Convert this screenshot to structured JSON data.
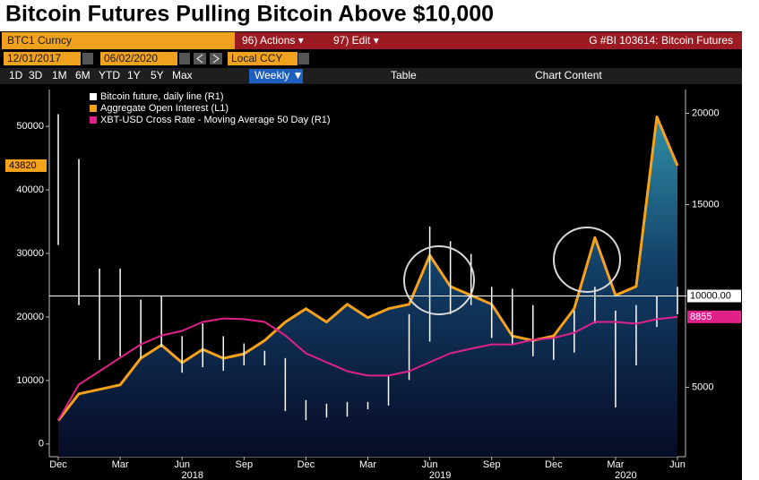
{
  "header": {
    "title": "Bitcoin Futures Pulling Bitcoin Above $10,000"
  },
  "toolbar": {
    "ticker": "BTC1 Curncy",
    "actions": "96) Actions ▾",
    "edit": "97) Edit ▾",
    "chart_name": "G #BI 103614: Bitcoin Futures",
    "start_date": "12/01/2017",
    "end_date": "06/02/2020",
    "currency": "Local CCY",
    "periods": [
      "1D",
      "3D",
      "1M",
      "6M",
      "YTD",
      "1Y",
      "5Y",
      "Max"
    ],
    "frequency": "Weekly ▼",
    "table": "Table",
    "chart_content": "Chart Content"
  },
  "chart_data": {
    "type": "line",
    "legend": "upper left",
    "categories": [
      "Dec",
      null,
      null,
      "Mar",
      null,
      null,
      "Jun",
      null,
      null,
      "Sep",
      null,
      null,
      "Dec",
      null,
      null,
      "Mar",
      null,
      null,
      "Jun",
      null,
      null,
      "Sep",
      null,
      null,
      "Dec",
      null,
      null,
      "Mar",
      null,
      null,
      "Jun"
    ],
    "year_labels": [
      "2018",
      "2019",
      "2020"
    ],
    "ylim": [
      -2000,
      55800
    ],
    "yticks": [
      0,
      10000,
      20000,
      30000,
      40000,
      50000
    ],
    "y2lim": [
      1200,
      21300
    ],
    "y2ticks": [
      5000,
      10000,
      15000,
      20000
    ],
    "reference_line": {
      "value": 10000,
      "label": "10000.00",
      "axis": "y2",
      "color": "#ffffff"
    },
    "series": [
      {
        "name": "Bitcoin future, daily line (R1)",
        "color": "#ffffff",
        "axis": "y2",
        "style": "range-bar",
        "high": [
          19950,
          17500,
          11500,
          11500,
          9800,
          10000,
          7800,
          8500,
          7800,
          7400,
          7000,
          6600,
          4300,
          4100,
          4200,
          4200,
          5600,
          9000,
          13800,
          13000,
          12300,
          10500,
          10400,
          9500,
          7700,
          9200,
          10500,
          9200,
          9500,
          10000,
          10500
        ],
        "low": [
          12790,
          9500,
          6500,
          6700,
          6600,
          7200,
          5800,
          6100,
          5900,
          6200,
          6200,
          3700,
          3200,
          3350,
          3400,
          3800,
          4000,
          5400,
          7500,
          9000,
          9500,
          7700,
          7300,
          6700,
          6500,
          6900,
          8500,
          3900,
          6200,
          8300,
          9000
        ]
      },
      {
        "name": "Aggregate Open Interest (L1)",
        "color": "#f7a21b",
        "style": "area",
        "values": [
          3700,
          7900,
          8600,
          9300,
          13500,
          15600,
          12800,
          14900,
          13500,
          14200,
          16300,
          19200,
          21300,
          19200,
          22000,
          19900,
          21300,
          22000,
          29700,
          24800,
          23400,
          22000,
          17000,
          16300,
          17000,
          21300,
          32500,
          23400,
          24800,
          51500,
          43820
        ]
      },
      {
        "name": "XBT-USD Cross Rate - Moving Average 50 Day (R1)",
        "color": "#e0218a",
        "axis": "y2",
        "style": "line",
        "values": [
          3200,
          5150,
          5880,
          6620,
          7350,
          7840,
          8090,
          8580,
          8770,
          8730,
          8580,
          7840,
          6860,
          6370,
          5880,
          5640,
          5640,
          5880,
          6370,
          6860,
          7110,
          7350,
          7350,
          7600,
          7700,
          7990,
          8580,
          8580,
          8480,
          8730,
          8855
        ]
      }
    ]
  }
}
